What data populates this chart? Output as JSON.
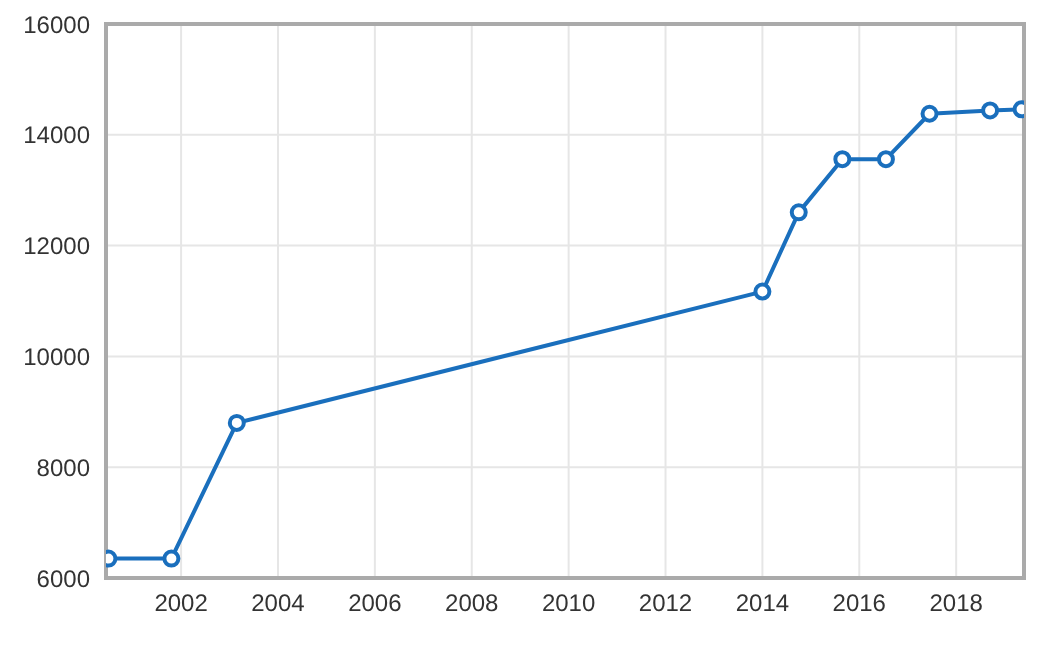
{
  "chart_data": {
    "type": "line",
    "x": [
      2000.5,
      2001.8,
      2003.15,
      2014.0,
      2014.75,
      2015.65,
      2016.55,
      2017.45,
      2018.7,
      2019.35
    ],
    "series": [
      {
        "color": "#1a6fbd",
        "values": [
          6350,
          6350,
          8800,
          11170,
          12600,
          13560,
          13560,
          14380,
          14440,
          14460
        ]
      }
    ],
    "xlim": [
      2000.45,
      2019.4
    ],
    "xticks": [
      2002,
      2004,
      2006,
      2008,
      2010,
      2012,
      2014,
      2016,
      2018
    ],
    "ylim": [
      6000,
      16000
    ],
    "yticks": [
      6000,
      8000,
      10000,
      12000,
      14000,
      16000
    ],
    "grid": true,
    "marker": "circle",
    "line_style": "solid",
    "legend": false
  }
}
